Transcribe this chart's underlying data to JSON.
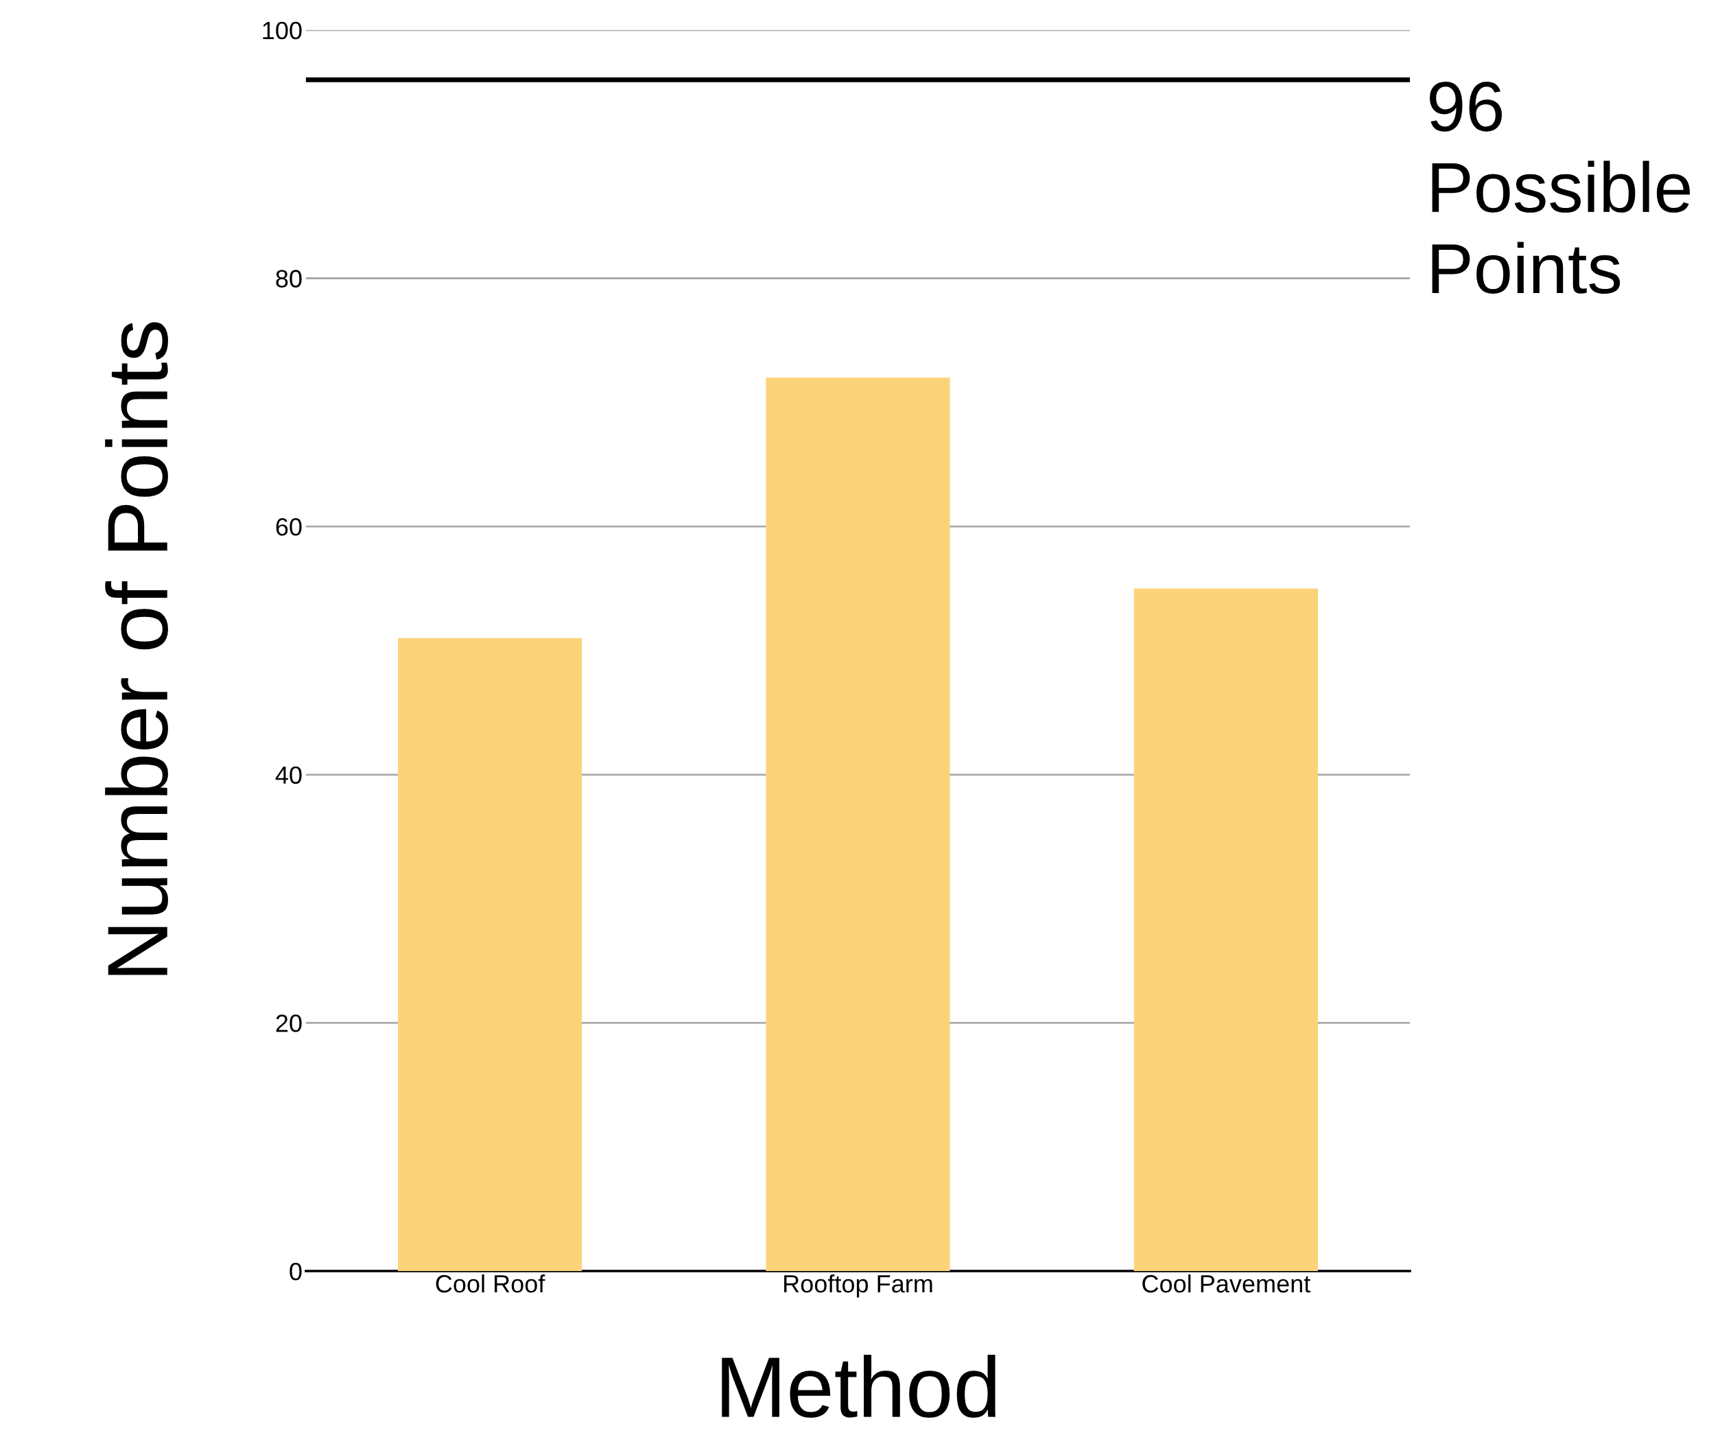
{
  "chart_data": {
    "type": "bar",
    "xlabel": "Method",
    "ylabel": "Number of Points",
    "categories": [
      "Cool Roof",
      "Rooftop Farm",
      "Cool Pavement"
    ],
    "values": [
      51,
      72,
      55
    ],
    "color": "#fdd379",
    "ylim": [
      0,
      100
    ],
    "yticks": [
      0,
      20,
      40,
      60,
      80,
      100
    ],
    "grid": "y",
    "ref_lines": [
      {
        "axis": "y",
        "value": 96,
        "label": "96\nPossible\nPoints",
        "color": "#000000"
      }
    ]
  }
}
